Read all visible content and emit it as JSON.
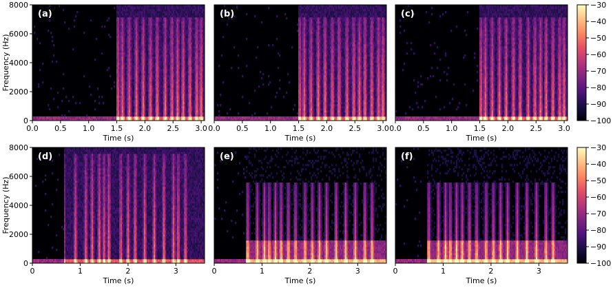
{
  "chart_data": [
    {
      "type": "heatmap",
      "panel": "(a)",
      "xlabel": "Time (s)",
      "ylabel": "Frequency (Hz)",
      "xlim": [
        0,
        3.06
      ],
      "ylim": [
        0,
        8000
      ],
      "xticks": [
        0.0,
        0.5,
        1.0,
        1.5,
        2.0,
        2.5,
        3.0
      ],
      "xtick_labels": [
        "0.0",
        "0.5",
        "1.0",
        "1.5",
        "2.0",
        "2.5",
        "3.0"
      ],
      "yticks": [
        0,
        2000,
        4000,
        6000,
        8000
      ],
      "ytick_labels": [
        "0",
        "2000",
        "4000",
        "6000",
        "8000"
      ],
      "speech_onset_s": 1.5,
      "bursts_s": [
        1.52,
        1.6,
        1.72,
        1.85,
        1.97,
        2.1,
        2.22,
        2.36,
        2.48,
        2.58,
        2.68,
        2.8,
        2.92,
        3.0
      ]
    },
    {
      "type": "heatmap",
      "panel": "(b)",
      "xlabel": "Time (s)",
      "xlim": [
        0,
        3.06
      ],
      "ylim": [
        0,
        8000
      ],
      "xticks": [
        0.0,
        0.5,
        1.0,
        1.5,
        2.0,
        2.5,
        3.0
      ],
      "xtick_labels": [
        "0.0",
        "0.5",
        "1.0",
        "1.5",
        "2.0",
        "2.5",
        "3.0"
      ],
      "speech_onset_s": 1.5,
      "bursts_s": [
        1.52,
        1.6,
        1.72,
        1.85,
        1.97,
        2.1,
        2.22,
        2.36,
        2.48,
        2.58,
        2.68,
        2.8,
        2.92,
        3.0
      ]
    },
    {
      "type": "heatmap",
      "panel": "(c)",
      "xlabel": "Time (s)",
      "xlim": [
        0,
        3.06
      ],
      "ylim": [
        0,
        8000
      ],
      "xticks": [
        0.0,
        0.5,
        1.0,
        1.5,
        2.0,
        2.5,
        3.0
      ],
      "xtick_labels": [
        "0.0",
        "0.5",
        "1.0",
        "1.5",
        "2.0",
        "2.5",
        "3.0"
      ],
      "speech_onset_s": 1.5,
      "bursts_s": [
        1.52,
        1.6,
        1.72,
        1.85,
        1.97,
        2.1,
        2.22,
        2.36,
        2.48,
        2.58,
        2.68,
        2.8,
        2.92,
        3.0
      ]
    },
    {
      "type": "heatmap",
      "panel": "(d)",
      "xlabel": "Time (s)",
      "ylabel": "Frequency (Hz)",
      "xlim": [
        0,
        3.6
      ],
      "ylim": [
        0,
        8000
      ],
      "xticks": [
        0,
        1,
        2,
        3
      ],
      "xtick_labels": [
        "0",
        "1",
        "2",
        "3"
      ],
      "yticks": [
        0,
        2000,
        4000,
        6000,
        8000
      ],
      "ytick_labels": [
        "0",
        "2000",
        "4000",
        "6000",
        "8000"
      ],
      "speech_onset_s": 0.65,
      "bursts_s": [
        0.65,
        0.9,
        1.12,
        1.25,
        1.4,
        1.5,
        1.6,
        1.85,
        2.0,
        2.15,
        2.35,
        2.55,
        2.75,
        2.95,
        3.05,
        3.2
      ]
    },
    {
      "type": "heatmap",
      "panel": "(e)",
      "xlabel": "Time (s)",
      "xlim": [
        0,
        3.6
      ],
      "ylim": [
        0,
        8000
      ],
      "xticks": [
        0,
        1,
        2,
        3
      ],
      "xtick_labels": [
        "0",
        "1",
        "2",
        "3"
      ],
      "speech_onset_s": 0.65,
      "bursts_s": [
        0.7,
        0.9,
        1.05,
        1.15,
        1.28,
        1.4,
        1.55,
        1.7,
        1.9,
        2.05,
        2.2,
        2.35,
        2.55,
        2.75,
        2.95,
        3.15,
        3.3
      ]
    },
    {
      "type": "heatmap",
      "panel": "(f)",
      "xlabel": "Time (s)",
      "xlim": [
        0,
        3.6
      ],
      "ylim": [
        0,
        8000
      ],
      "xticks": [
        0,
        1,
        2,
        3
      ],
      "xtick_labels": [
        "0",
        "1",
        "2",
        "3"
      ],
      "speech_onset_s": 0.65,
      "bursts_s": [
        0.7,
        0.9,
        1.05,
        1.15,
        1.28,
        1.4,
        1.55,
        1.7,
        1.9,
        2.05,
        2.2,
        2.35,
        2.55,
        2.75,
        2.95,
        3.15,
        3.3
      ]
    }
  ],
  "colorbars": [
    {
      "ticks": [
        -30,
        -40,
        -50,
        -60,
        -70,
        -80,
        -90,
        -100
      ],
      "tick_labels": [
        "−30",
        "−40",
        "−50",
        "−60",
        "−70",
        "−80",
        "−90",
        "−100"
      ],
      "range": [
        -100,
        -30
      ],
      "colormap": "magma"
    },
    {
      "ticks": [
        -30,
        -40,
        -50,
        -60,
        -70,
        -80,
        -90,
        -100
      ],
      "tick_labels": [
        "−30",
        "−40",
        "−50",
        "−60",
        "−70",
        "−80",
        "−90",
        "−100"
      ],
      "range": [
        -100,
        -30
      ],
      "colormap": "magma"
    }
  ]
}
